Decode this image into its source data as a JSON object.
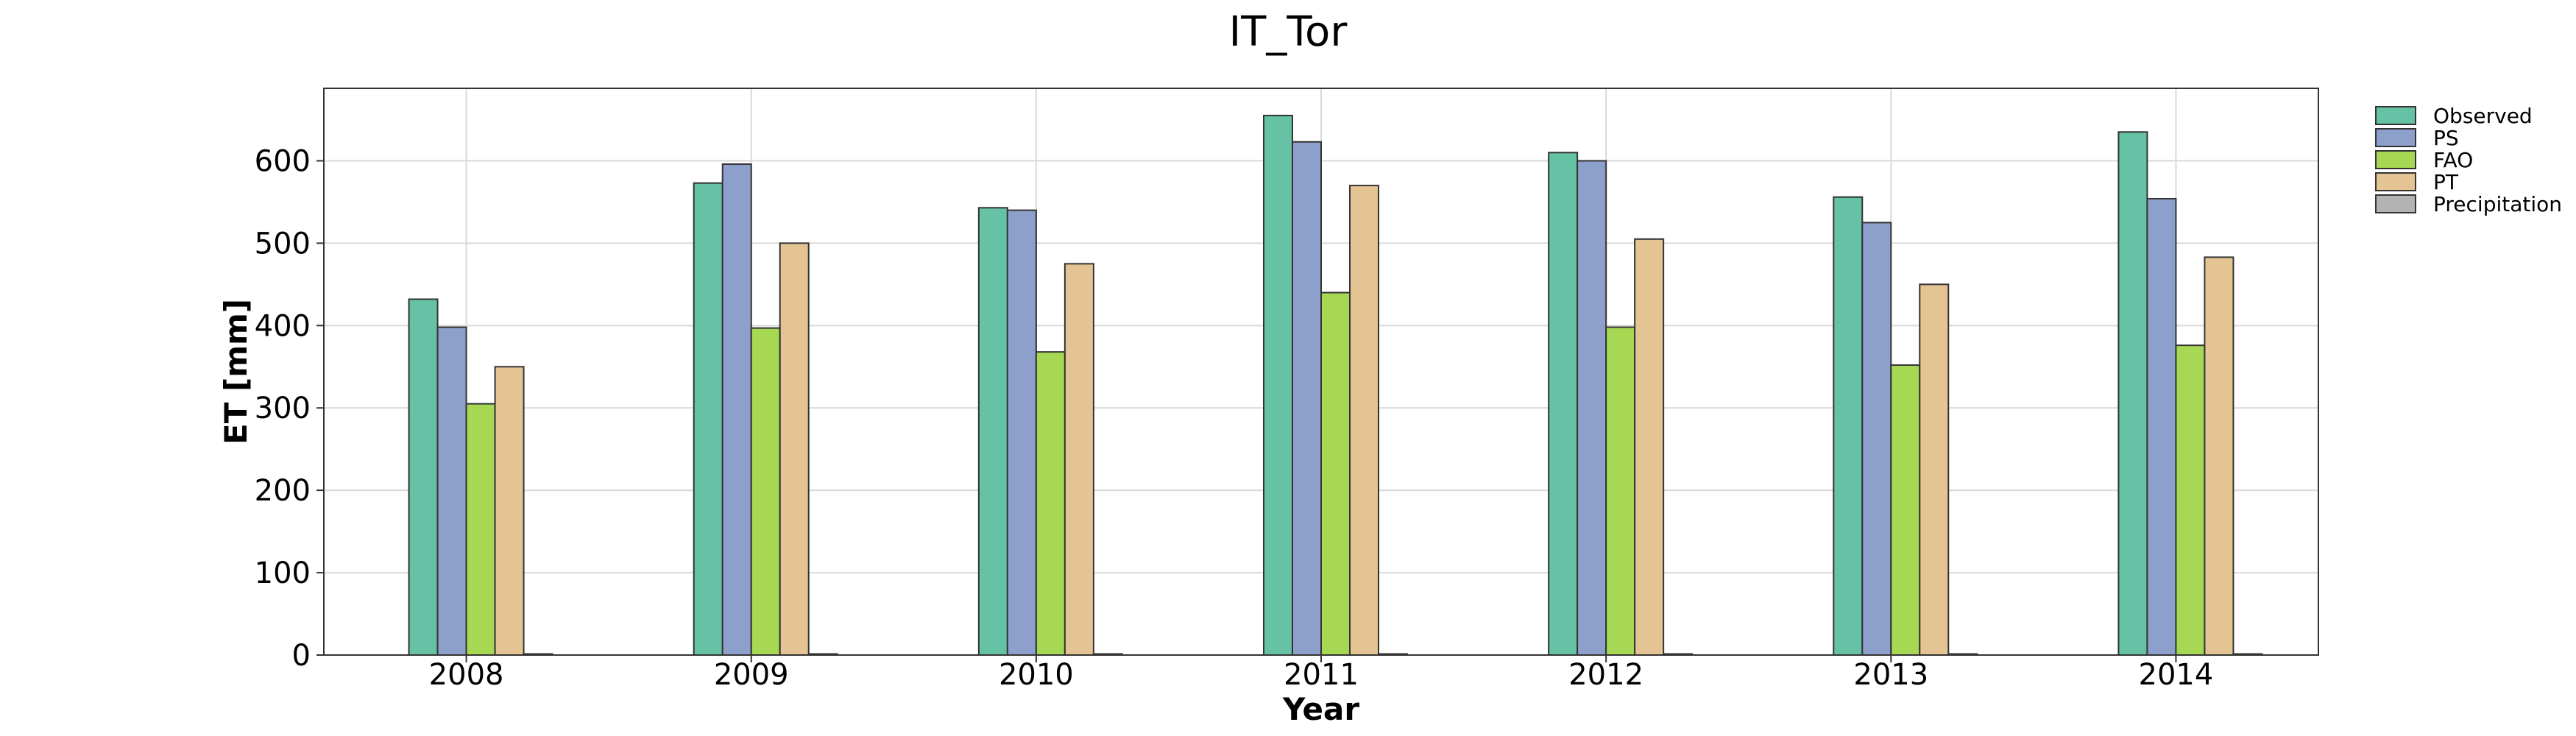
{
  "chart_data": {
    "type": "bar",
    "title": "IT_Tor",
    "xlabel": "Year",
    "ylabel": "ET [mm]",
    "categories": [
      "2008",
      "2009",
      "2010",
      "2011",
      "2012",
      "2013",
      "2014"
    ],
    "ylim": [
      0,
      688
    ],
    "yticks": [
      0,
      100,
      200,
      300,
      400,
      500,
      600
    ],
    "grid": true,
    "legend_position": "outside-top-right",
    "series": [
      {
        "name": "Observed",
        "color": "#66c2a5",
        "values": [
          432,
          573,
          543,
          655,
          610,
          556,
          635
        ]
      },
      {
        "name": "PS",
        "color": "#8da0cb",
        "values": [
          398,
          596,
          540,
          623,
          600,
          525,
          554
        ]
      },
      {
        "name": "FAO",
        "color": "#a6d854",
        "values": [
          305,
          397,
          368,
          440,
          398,
          352,
          376
        ]
      },
      {
        "name": "PT",
        "color": "#e5c494",
        "values": [
          350,
          500,
          475,
          570,
          505,
          450,
          483
        ]
      },
      {
        "name": "Precipitation",
        "color": "#b3b3b3",
        "values": [
          0,
          0,
          0,
          0,
          0,
          0,
          0
        ]
      }
    ]
  }
}
